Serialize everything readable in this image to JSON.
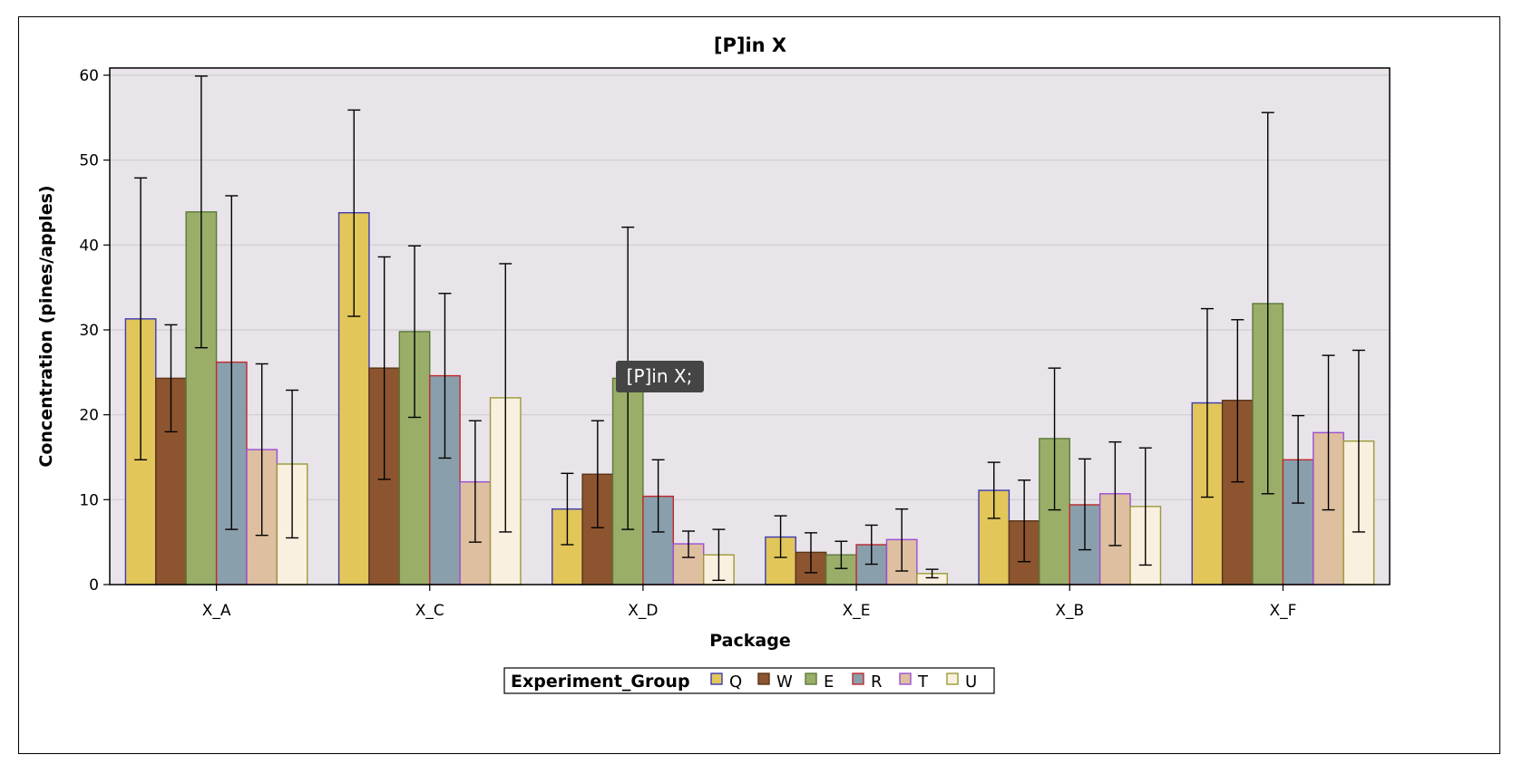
{
  "chart_data": {
    "type": "bar",
    "title": "[P]in X",
    "xlabel": "Package",
    "ylabel": "Concentration (pines/apples)",
    "ylim": [
      0,
      60
    ],
    "yticks": [
      0,
      10,
      20,
      30,
      40,
      50,
      60
    ],
    "grid": true,
    "legend": {
      "title": "Experiment_Group",
      "position": "bottom"
    },
    "categories": [
      "X_A",
      "X_C",
      "X_D",
      "X_E",
      "X_B",
      "X_F"
    ],
    "series": [
      {
        "name": "Q",
        "fill": "#E2C65A",
        "edge": "#3B3BB5",
        "values": [
          31.3,
          43.8,
          8.9,
          5.6,
          11.1,
          21.4
        ],
        "lower": [
          14.7,
          31.6,
          4.7,
          3.2,
          7.8,
          10.3
        ],
        "upper": [
          47.9,
          55.9,
          13.1,
          8.1,
          14.4,
          32.5
        ]
      },
      {
        "name": "W",
        "fill": "#8C5530",
        "edge": "#5A3418",
        "values": [
          24.3,
          25.5,
          13.0,
          3.8,
          7.5,
          21.7
        ],
        "lower": [
          18.0,
          12.4,
          6.7,
          1.4,
          2.7,
          12.1
        ],
        "upper": [
          30.6,
          38.6,
          19.3,
          6.1,
          12.3,
          31.2
        ]
      },
      {
        "name": "E",
        "fill": "#9BAE69",
        "edge": "#5A7A3A",
        "values": [
          43.9,
          29.8,
          24.3,
          3.5,
          17.2,
          33.1
        ],
        "lower": [
          27.9,
          19.7,
          6.5,
          1.9,
          8.8,
          10.7
        ],
        "upper": [
          59.9,
          39.9,
          42.1,
          5.1,
          25.5,
          55.6
        ]
      },
      {
        "name": "R",
        "fill": "#8A9FAC",
        "edge": "#C0282D",
        "values": [
          26.2,
          24.6,
          10.4,
          4.7,
          9.4,
          14.7
        ],
        "lower": [
          6.5,
          14.9,
          6.2,
          2.4,
          4.1,
          9.6
        ],
        "upper": [
          45.8,
          34.3,
          14.7,
          7.0,
          14.8,
          19.9
        ]
      },
      {
        "name": "T",
        "fill": "#DEBFA0",
        "edge": "#9A4FD8",
        "values": [
          15.9,
          12.1,
          4.8,
          5.3,
          10.7,
          17.9
        ],
        "lower": [
          5.8,
          5.0,
          3.2,
          1.6,
          4.6,
          8.8
        ],
        "upper": [
          26.0,
          19.3,
          6.3,
          8.9,
          16.8,
          27.0
        ]
      },
      {
        "name": "U",
        "fill": "#FAF0DF",
        "edge": "#9A9A3A",
        "values": [
          14.2,
          22.0,
          3.5,
          1.3,
          9.2,
          16.9
        ],
        "lower": [
          5.5,
          6.2,
          0.5,
          0.8,
          2.3,
          6.2
        ],
        "upper": [
          22.9,
          37.8,
          6.5,
          1.8,
          16.1,
          27.6
        ]
      }
    ],
    "tooltip": {
      "text": "[P]in X;"
    }
  },
  "colors": {
    "plot_background": "#E8E4E9",
    "gridline": "#D0CCD2",
    "tooltip_background": "#454545"
  }
}
